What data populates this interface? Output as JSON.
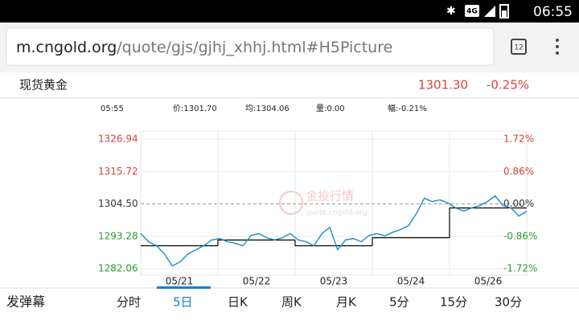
{
  "status_bar": {
    "network": "4G",
    "time": "06:55"
  },
  "browser": {
    "url_host": "m.cngold.org",
    "url_path": "/quote/gjs/gjhj_xhhj.html#H5Picture",
    "tab_count": "12"
  },
  "quote": {
    "name": "现货黄金",
    "price": "1301.30",
    "change": "-0.25%"
  },
  "info": {
    "time": "05:55",
    "price": "价:1301.70",
    "average": "均:1304.06",
    "volume": "量:0.00",
    "amplitude": "幅:-0.21%"
  },
  "watermark": {
    "title": "金投行情",
    "url": "quote.cngold.org"
  },
  "chart_data": {
    "type": "line",
    "categories": [
      "05/21",
      "05/22",
      "05/23",
      "05/24",
      "05/26"
    ],
    "price_values": [
      1294.2,
      1291.4,
      1290,
      1287.2,
      1283,
      1284.4,
      1287.2,
      1288.6,
      1290,
      1292,
      1292.5,
      1291.4,
      1290.8,
      1290,
      1293.6,
      1294.2,
      1292.8,
      1292,
      1292.8,
      1294.2,
      1292,
      1291.4,
      1290,
      1294.2,
      1296.4,
      1288.6,
      1292,
      1292.5,
      1291.4,
      1293.6,
      1294.2,
      1293.4,
      1294.7,
      1295.6,
      1297,
      1301.2,
      1306.5,
      1305.3,
      1305.9,
      1304.8,
      1303.1,
      1302,
      1303.1,
      1303.9,
      1305.3,
      1307.3,
      1303.9,
      1303.1,
      1300.3,
      1302
    ],
    "price_color": "#1a8fc9",
    "average_values": [
      1290,
      1292,
      1290,
      1292.8,
      1303.1
    ],
    "average_color": "#000000",
    "ylim": [
      1282.06,
      1326.94
    ],
    "yticks": [
      1282.06,
      1293.28,
      {
        "value": 1304.5,
        "label": "1304.50"
      },
      1315.72,
      1326.94
    ],
    "y2lim": [
      -1.72,
      1.72
    ],
    "y2ticks": [
      {
        "value": -1.72,
        "label": "-1.72%"
      },
      {
        "value": -0.86,
        "label": "-0.86%"
      },
      {
        "value": 0,
        "label": "0.00%"
      },
      {
        "value": 0.86,
        "label": "0.86%"
      },
      {
        "value": 1.72,
        "label": "1.72%"
      }
    ],
    "grid": true
  },
  "tabs": [
    "发弹幕",
    "分时",
    "5日",
    "日K",
    "周K",
    "月K",
    "5分",
    "15分",
    "30分"
  ],
  "active_tab": 2
}
